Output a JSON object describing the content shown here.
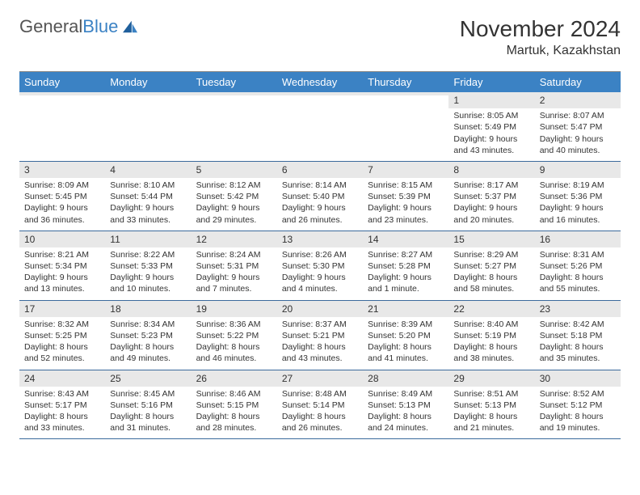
{
  "brand": {
    "part1": "General",
    "part2": "Blue"
  },
  "title": "November 2024",
  "location": "Martuk, Kazakhstan",
  "colors": {
    "header_bg": "#3b82c4",
    "header_text": "#ffffff",
    "daynum_bg": "#e8e8e8",
    "row_border": "#3b6a9c",
    "text": "#333333",
    "logo_blue": "#3b82c4"
  },
  "day_names": [
    "Sunday",
    "Monday",
    "Tuesday",
    "Wednesday",
    "Thursday",
    "Friday",
    "Saturday"
  ],
  "weeks": [
    [
      {
        "n": "",
        "sr": "",
        "ss": "",
        "dl": ""
      },
      {
        "n": "",
        "sr": "",
        "ss": "",
        "dl": ""
      },
      {
        "n": "",
        "sr": "",
        "ss": "",
        "dl": ""
      },
      {
        "n": "",
        "sr": "",
        "ss": "",
        "dl": ""
      },
      {
        "n": "",
        "sr": "",
        "ss": "",
        "dl": ""
      },
      {
        "n": "1",
        "sr": "Sunrise: 8:05 AM",
        "ss": "Sunset: 5:49 PM",
        "dl": "Daylight: 9 hours and 43 minutes."
      },
      {
        "n": "2",
        "sr": "Sunrise: 8:07 AM",
        "ss": "Sunset: 5:47 PM",
        "dl": "Daylight: 9 hours and 40 minutes."
      }
    ],
    [
      {
        "n": "3",
        "sr": "Sunrise: 8:09 AM",
        "ss": "Sunset: 5:45 PM",
        "dl": "Daylight: 9 hours and 36 minutes."
      },
      {
        "n": "4",
        "sr": "Sunrise: 8:10 AM",
        "ss": "Sunset: 5:44 PM",
        "dl": "Daylight: 9 hours and 33 minutes."
      },
      {
        "n": "5",
        "sr": "Sunrise: 8:12 AM",
        "ss": "Sunset: 5:42 PM",
        "dl": "Daylight: 9 hours and 29 minutes."
      },
      {
        "n": "6",
        "sr": "Sunrise: 8:14 AM",
        "ss": "Sunset: 5:40 PM",
        "dl": "Daylight: 9 hours and 26 minutes."
      },
      {
        "n": "7",
        "sr": "Sunrise: 8:15 AM",
        "ss": "Sunset: 5:39 PM",
        "dl": "Daylight: 9 hours and 23 minutes."
      },
      {
        "n": "8",
        "sr": "Sunrise: 8:17 AM",
        "ss": "Sunset: 5:37 PM",
        "dl": "Daylight: 9 hours and 20 minutes."
      },
      {
        "n": "9",
        "sr": "Sunrise: 8:19 AM",
        "ss": "Sunset: 5:36 PM",
        "dl": "Daylight: 9 hours and 16 minutes."
      }
    ],
    [
      {
        "n": "10",
        "sr": "Sunrise: 8:21 AM",
        "ss": "Sunset: 5:34 PM",
        "dl": "Daylight: 9 hours and 13 minutes."
      },
      {
        "n": "11",
        "sr": "Sunrise: 8:22 AM",
        "ss": "Sunset: 5:33 PM",
        "dl": "Daylight: 9 hours and 10 minutes."
      },
      {
        "n": "12",
        "sr": "Sunrise: 8:24 AM",
        "ss": "Sunset: 5:31 PM",
        "dl": "Daylight: 9 hours and 7 minutes."
      },
      {
        "n": "13",
        "sr": "Sunrise: 8:26 AM",
        "ss": "Sunset: 5:30 PM",
        "dl": "Daylight: 9 hours and 4 minutes."
      },
      {
        "n": "14",
        "sr": "Sunrise: 8:27 AM",
        "ss": "Sunset: 5:28 PM",
        "dl": "Daylight: 9 hours and 1 minute."
      },
      {
        "n": "15",
        "sr": "Sunrise: 8:29 AM",
        "ss": "Sunset: 5:27 PM",
        "dl": "Daylight: 8 hours and 58 minutes."
      },
      {
        "n": "16",
        "sr": "Sunrise: 8:31 AM",
        "ss": "Sunset: 5:26 PM",
        "dl": "Daylight: 8 hours and 55 minutes."
      }
    ],
    [
      {
        "n": "17",
        "sr": "Sunrise: 8:32 AM",
        "ss": "Sunset: 5:25 PM",
        "dl": "Daylight: 8 hours and 52 minutes."
      },
      {
        "n": "18",
        "sr": "Sunrise: 8:34 AM",
        "ss": "Sunset: 5:23 PM",
        "dl": "Daylight: 8 hours and 49 minutes."
      },
      {
        "n": "19",
        "sr": "Sunrise: 8:36 AM",
        "ss": "Sunset: 5:22 PM",
        "dl": "Daylight: 8 hours and 46 minutes."
      },
      {
        "n": "20",
        "sr": "Sunrise: 8:37 AM",
        "ss": "Sunset: 5:21 PM",
        "dl": "Daylight: 8 hours and 43 minutes."
      },
      {
        "n": "21",
        "sr": "Sunrise: 8:39 AM",
        "ss": "Sunset: 5:20 PM",
        "dl": "Daylight: 8 hours and 41 minutes."
      },
      {
        "n": "22",
        "sr": "Sunrise: 8:40 AM",
        "ss": "Sunset: 5:19 PM",
        "dl": "Daylight: 8 hours and 38 minutes."
      },
      {
        "n": "23",
        "sr": "Sunrise: 8:42 AM",
        "ss": "Sunset: 5:18 PM",
        "dl": "Daylight: 8 hours and 35 minutes."
      }
    ],
    [
      {
        "n": "24",
        "sr": "Sunrise: 8:43 AM",
        "ss": "Sunset: 5:17 PM",
        "dl": "Daylight: 8 hours and 33 minutes."
      },
      {
        "n": "25",
        "sr": "Sunrise: 8:45 AM",
        "ss": "Sunset: 5:16 PM",
        "dl": "Daylight: 8 hours and 31 minutes."
      },
      {
        "n": "26",
        "sr": "Sunrise: 8:46 AM",
        "ss": "Sunset: 5:15 PM",
        "dl": "Daylight: 8 hours and 28 minutes."
      },
      {
        "n": "27",
        "sr": "Sunrise: 8:48 AM",
        "ss": "Sunset: 5:14 PM",
        "dl": "Daylight: 8 hours and 26 minutes."
      },
      {
        "n": "28",
        "sr": "Sunrise: 8:49 AM",
        "ss": "Sunset: 5:13 PM",
        "dl": "Daylight: 8 hours and 24 minutes."
      },
      {
        "n": "29",
        "sr": "Sunrise: 8:51 AM",
        "ss": "Sunset: 5:13 PM",
        "dl": "Daylight: 8 hours and 21 minutes."
      },
      {
        "n": "30",
        "sr": "Sunrise: 8:52 AM",
        "ss": "Sunset: 5:12 PM",
        "dl": "Daylight: 8 hours and 19 minutes."
      }
    ]
  ]
}
